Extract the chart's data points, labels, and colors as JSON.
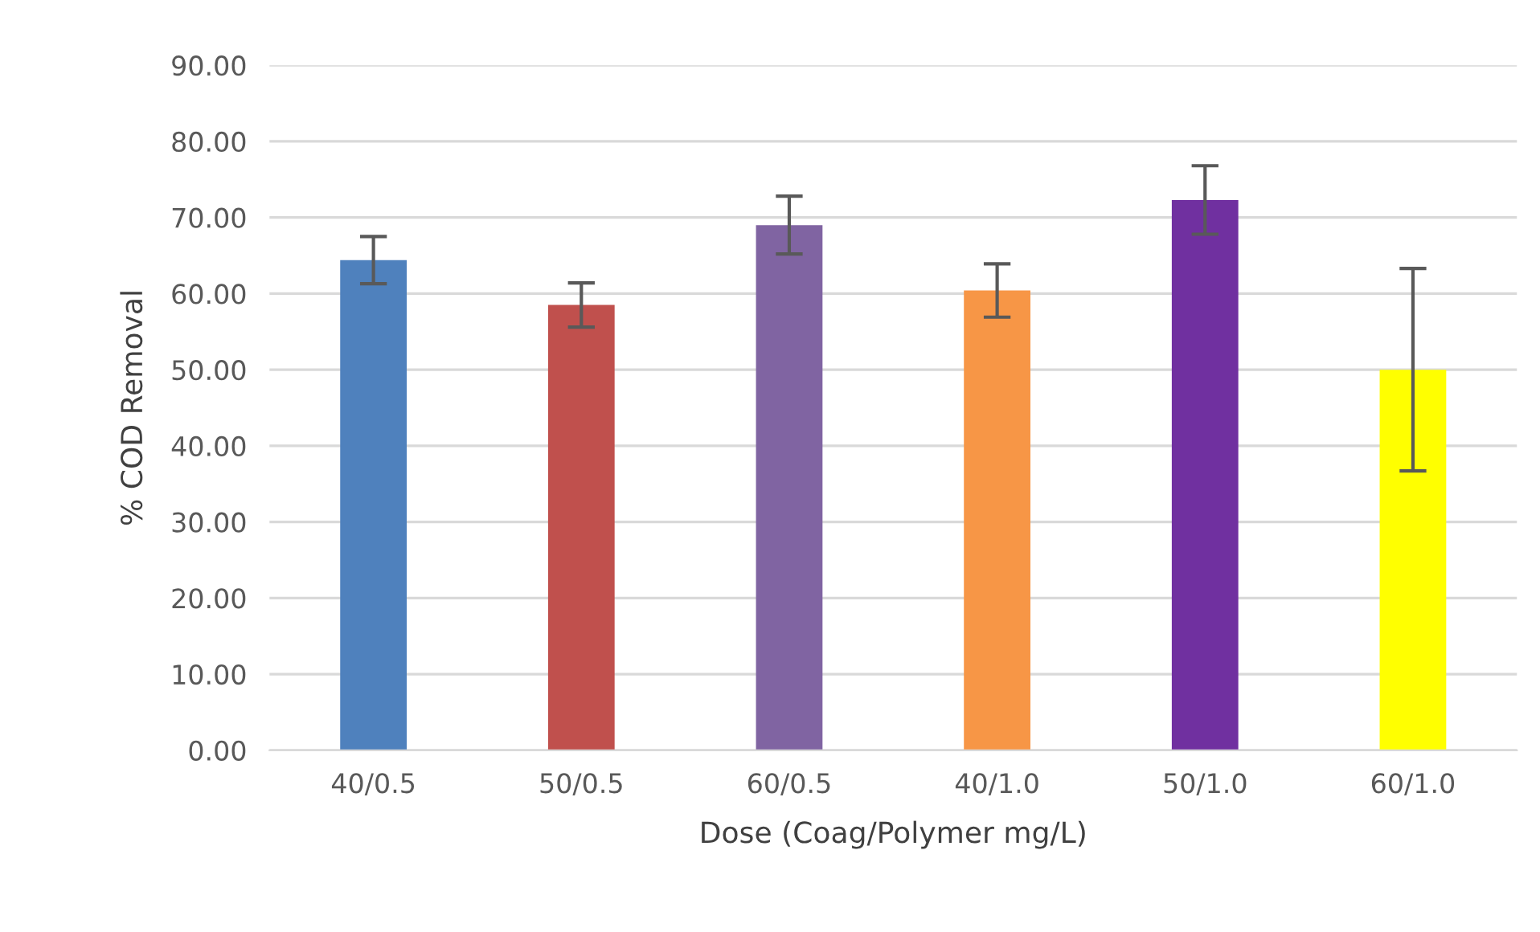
{
  "chart_data": {
    "type": "bar",
    "xlabel": "Dose (Coag/Polymer mg/L)",
    "ylabel": "% COD Removal",
    "categories": [
      "40/0.5",
      "50/0.5",
      "60/0.5",
      "40/1.0",
      "50/1.0",
      "60/1.0"
    ],
    "values": [
      64.4,
      58.5,
      69.0,
      60.4,
      72.3,
      50.0
    ],
    "errors": [
      3.1,
      2.9,
      3.8,
      3.5,
      4.5,
      13.3
    ],
    "colors": [
      "#4f81bd",
      "#c0504d",
      "#8064a2",
      "#f79646",
      "#7030a0",
      "#ffff00"
    ],
    "ylim": [
      0,
      90
    ],
    "yticks": [
      {
        "value": 0,
        "label": "0.00"
      },
      {
        "value": 10,
        "label": "10.00"
      },
      {
        "value": 20,
        "label": "20.00"
      },
      {
        "value": 30,
        "label": "30.00"
      },
      {
        "value": 40,
        "label": "40.00"
      },
      {
        "value": 50,
        "label": "50.00"
      },
      {
        "value": 60,
        "label": "60.00"
      },
      {
        "value": 70,
        "label": "70.00"
      },
      {
        "value": 80,
        "label": "80.00"
      },
      {
        "value": 90,
        "label": "90.00"
      }
    ],
    "grid": "y"
  }
}
